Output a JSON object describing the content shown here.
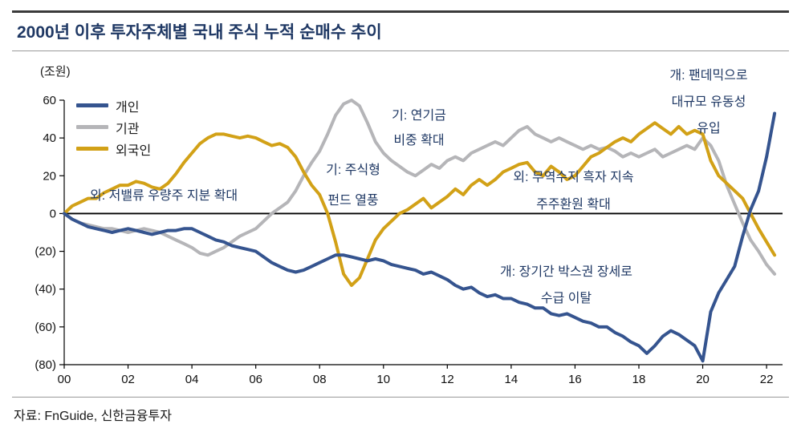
{
  "header": {
    "title": "2000년 이후 투자주체별 국내 주식 누적 순매수 추이"
  },
  "source": {
    "label": "자료: FnGuide, 신한금융투자"
  },
  "chart_data": {
    "type": "line",
    "title": "2000년 이후 투자주체별 국내 주식 누적 순매수 추이",
    "unit_label": "(조원)",
    "x_range": [
      2000,
      2022.5
    ],
    "y_range": [
      -80,
      60
    ],
    "grid": false,
    "zero_line": true,
    "legend_position": "top-left",
    "x_ticks": {
      "years": [
        2000,
        2002,
        2004,
        2006,
        2008,
        2010,
        2012,
        2014,
        2016,
        2018,
        2020,
        2022
      ],
      "labels": [
        "00",
        "02",
        "04",
        "06",
        "08",
        "10",
        "12",
        "14",
        "16",
        "18",
        "20",
        "22"
      ]
    },
    "y_ticks": {
      "values": [
        60,
        40,
        20,
        0,
        -20,
        -40,
        -60,
        -80
      ],
      "labels": [
        "60",
        "40",
        "20",
        "0",
        "(20)",
        "(40)",
        "(60)",
        "(80)"
      ]
    },
    "series": [
      {
        "id": "individual",
        "name": "개인",
        "color": "#35548F",
        "x_start": 2000,
        "x_step": 0.25,
        "y": [
          0,
          -3,
          -5,
          -7,
          -8,
          -9,
          -10,
          -9,
          -8,
          -9,
          -10,
          -11,
          -10,
          -9,
          -9,
          -8,
          -8,
          -10,
          -12,
          -14,
          -15,
          -17,
          -18,
          -19,
          -20,
          -23,
          -26,
          -28,
          -30,
          -31,
          -30,
          -28,
          -26,
          -24,
          -22,
          -22,
          -23,
          -24,
          -25,
          -24,
          -25,
          -27,
          -28,
          -29,
          -30,
          -32,
          -31,
          -33,
          -35,
          -38,
          -40,
          -39,
          -42,
          -44,
          -43,
          -45,
          -45,
          -47,
          -48,
          -50,
          -50,
          -53,
          -54,
          -53,
          -55,
          -57,
          -58,
          -60,
          -60,
          -63,
          -65,
          -68,
          -70,
          -74,
          -70,
          -65,
          -62,
          -64,
          -67,
          -70,
          -78,
          -52,
          -42,
          -35,
          -28,
          -12,
          2,
          12,
          30,
          53
        ]
      },
      {
        "id": "institution",
        "name": "기관",
        "color": "#B5B5B8",
        "x_start": 2000,
        "x_step": 0.25,
        "y": [
          0,
          -3,
          -5,
          -6,
          -7,
          -8,
          -8,
          -9,
          -10,
          -9,
          -8,
          -9,
          -10,
          -12,
          -14,
          -16,
          -18,
          -21,
          -22,
          -20,
          -18,
          -15,
          -12,
          -10,
          -8,
          -4,
          0,
          3,
          6,
          12,
          20,
          27,
          33,
          42,
          52,
          58,
          60,
          57,
          48,
          38,
          32,
          28,
          25,
          22,
          20,
          23,
          26,
          24,
          28,
          30,
          28,
          32,
          34,
          36,
          38,
          36,
          40,
          44,
          46,
          42,
          40,
          38,
          40,
          38,
          36,
          34,
          36,
          34,
          35,
          33,
          30,
          32,
          30,
          32,
          34,
          30,
          32,
          34,
          36,
          34,
          40,
          36,
          28,
          15,
          5,
          -5,
          -14,
          -20,
          -27,
          -32
        ]
      },
      {
        "id": "foreigner",
        "name": "외국인",
        "color": "#D2A117",
        "x_start": 2000,
        "x_step": 0.25,
        "y": [
          0,
          4,
          6,
          8,
          8,
          11,
          13,
          15,
          15,
          17,
          16,
          14,
          13,
          16,
          21,
          27,
          32,
          37,
          40,
          42,
          42,
          41,
          40,
          41,
          40,
          38,
          36,
          37,
          35,
          30,
          22,
          15,
          10,
          0,
          -15,
          -32,
          -38,
          -34,
          -24,
          -14,
          -8,
          -4,
          0,
          2,
          5,
          8,
          3,
          6,
          9,
          13,
          10,
          15,
          18,
          15,
          18,
          22,
          24,
          26,
          27,
          22,
          20,
          25,
          22,
          18,
          20,
          25,
          30,
          32,
          35,
          38,
          40,
          38,
          42,
          45,
          48,
          45,
          42,
          46,
          42,
          44,
          42,
          28,
          20,
          16,
          12,
          8,
          0,
          -8,
          -15,
          -22
        ]
      }
    ],
    "annotations": [
      {
        "id": "foreign-value-stocks",
        "lines": [
          "외: 저밸류 우량주 지분 확대"
        ]
      },
      {
        "id": "institution-fund-boom",
        "lines": [
          "기: 주식형",
          "펀드 열풍"
        ]
      },
      {
        "id": "institution-pension",
        "lines": [
          "기: 연기금",
          "비중 확대"
        ]
      },
      {
        "id": "foreign-trade-surplus",
        "lines": [
          "외: 무역수지 흑자 지속",
          "주주환원 확대"
        ]
      },
      {
        "id": "individual-pandemic",
        "lines": [
          "개: 팬데믹으로",
          "대규모 유동성",
          "유입"
        ]
      },
      {
        "id": "individual-box-range",
        "lines": [
          "개: 장기간 박스권 장세로",
          "수급 이탈"
        ]
      }
    ]
  }
}
